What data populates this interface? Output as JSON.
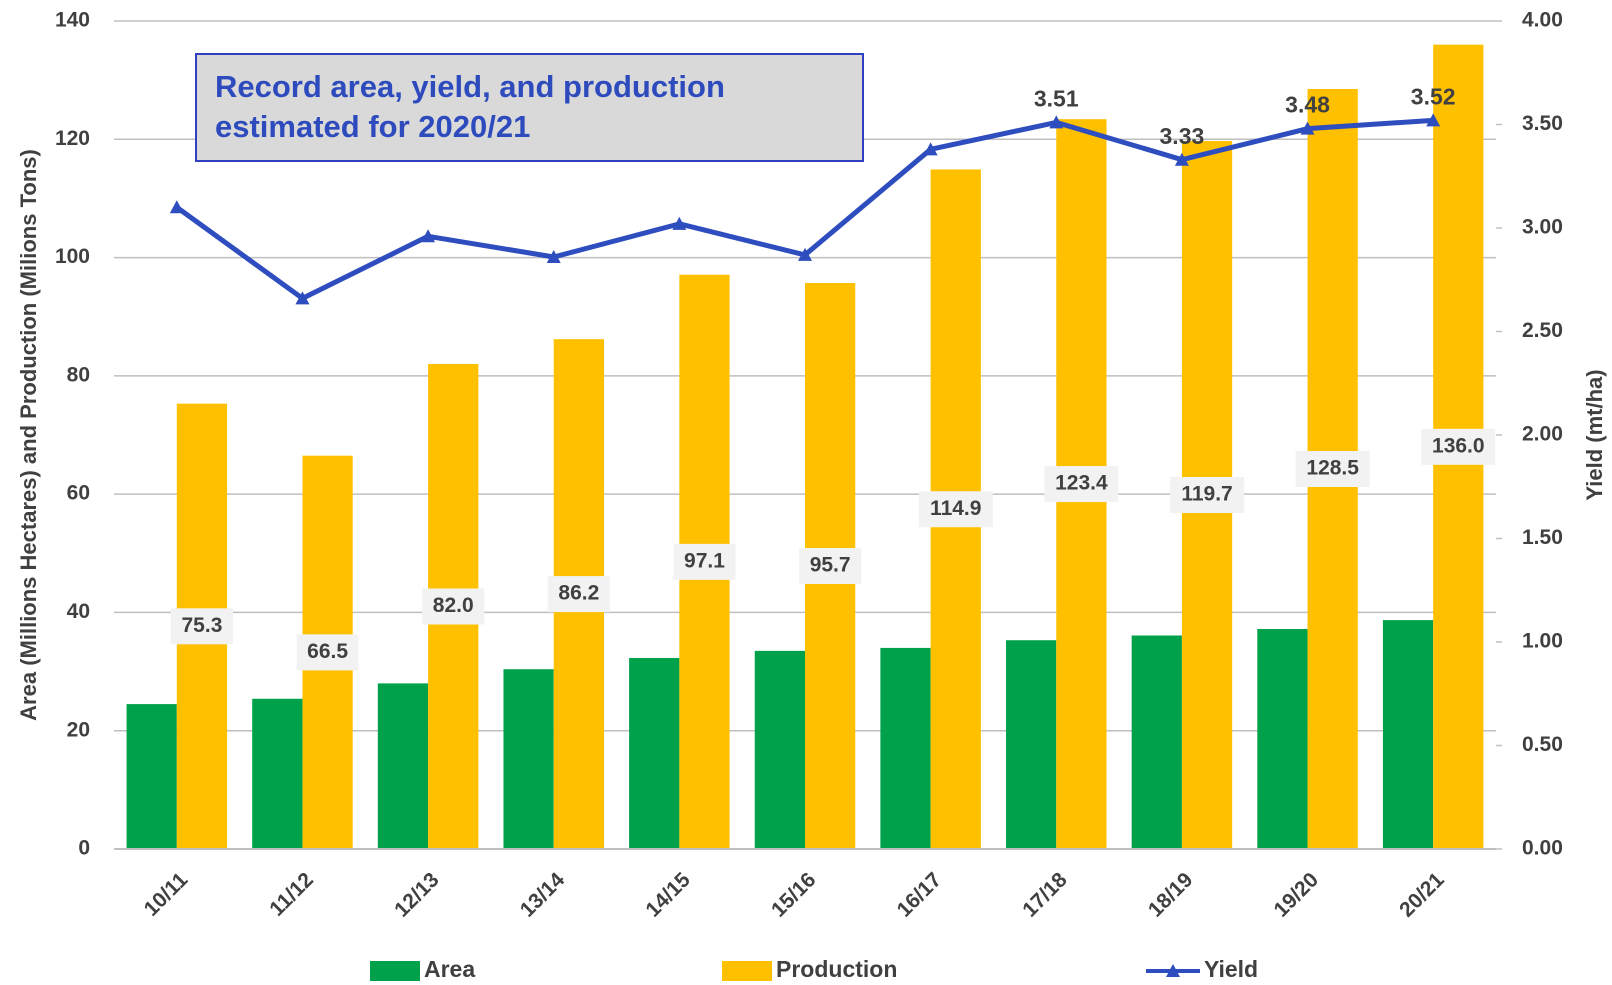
{
  "chart_data": {
    "type": "bar",
    "annotation": "Record area, yield, and production estimated for 2020/21",
    "y_label": "Area (Millions Hectares) and Production (Milions Tons)",
    "y2_label": "Yield (mt/ha)",
    "categories": [
      "10/11",
      "11/12",
      "12/13",
      "13/14",
      "14/15",
      "15/16",
      "16/17",
      "17/18",
      "18/19",
      "19/20",
      "20/21"
    ],
    "series": [
      {
        "name": "Area",
        "color": "#00a14b",
        "values": [
          24.5,
          25.4,
          28.0,
          30.4,
          32.3,
          33.5,
          34.0,
          35.3,
          36.1,
          37.2,
          38.7
        ]
      },
      {
        "name": "Production",
        "color": "#ffc000",
        "values": [
          75.3,
          66.5,
          82,
          86.2,
          97.1,
          95.7,
          114.9,
          123.4,
          119.7,
          128.5,
          136
        ],
        "value_labels": [
          "75.3",
          "66.5",
          "82.0",
          "86.2",
          "97.1",
          "95.7",
          "114.9",
          "123.4",
          "119.7",
          "128.5",
          "136.0"
        ]
      },
      {
        "name": "Yield",
        "type": "line",
        "axis": "y2",
        "color": "#2e4dbe",
        "values": [
          3.1,
          2.66,
          2.96,
          2.86,
          3.02,
          2.87,
          3.38,
          3.51,
          3.33,
          3.48,
          3.52
        ],
        "value_labels": [
          null,
          null,
          null,
          null,
          null,
          null,
          null,
          "3.51",
          "3.33",
          "3.48",
          "3.52"
        ]
      }
    ],
    "ylim": [
      0,
      140
    ],
    "yticks": [
      0,
      20,
      40,
      60,
      80,
      100,
      120,
      140
    ],
    "y2lim": [
      0,
      4
    ],
    "y2ticks": [
      {
        "value": 0,
        "label": "0.00"
      },
      {
        "value": 0.5,
        "label": "0.50"
      },
      {
        "value": 1,
        "label": "1.00"
      },
      {
        "value": 1.5,
        "label": "1.50"
      },
      {
        "value": 2,
        "label": "2.00"
      },
      {
        "value": 2.5,
        "label": "2.50"
      },
      {
        "value": 3,
        "label": "3.00"
      },
      {
        "value": 3.5,
        "label": "3.50"
      },
      {
        "value": 4,
        "label": "4.00"
      }
    ],
    "grid": true,
    "legend": "bottom"
  }
}
